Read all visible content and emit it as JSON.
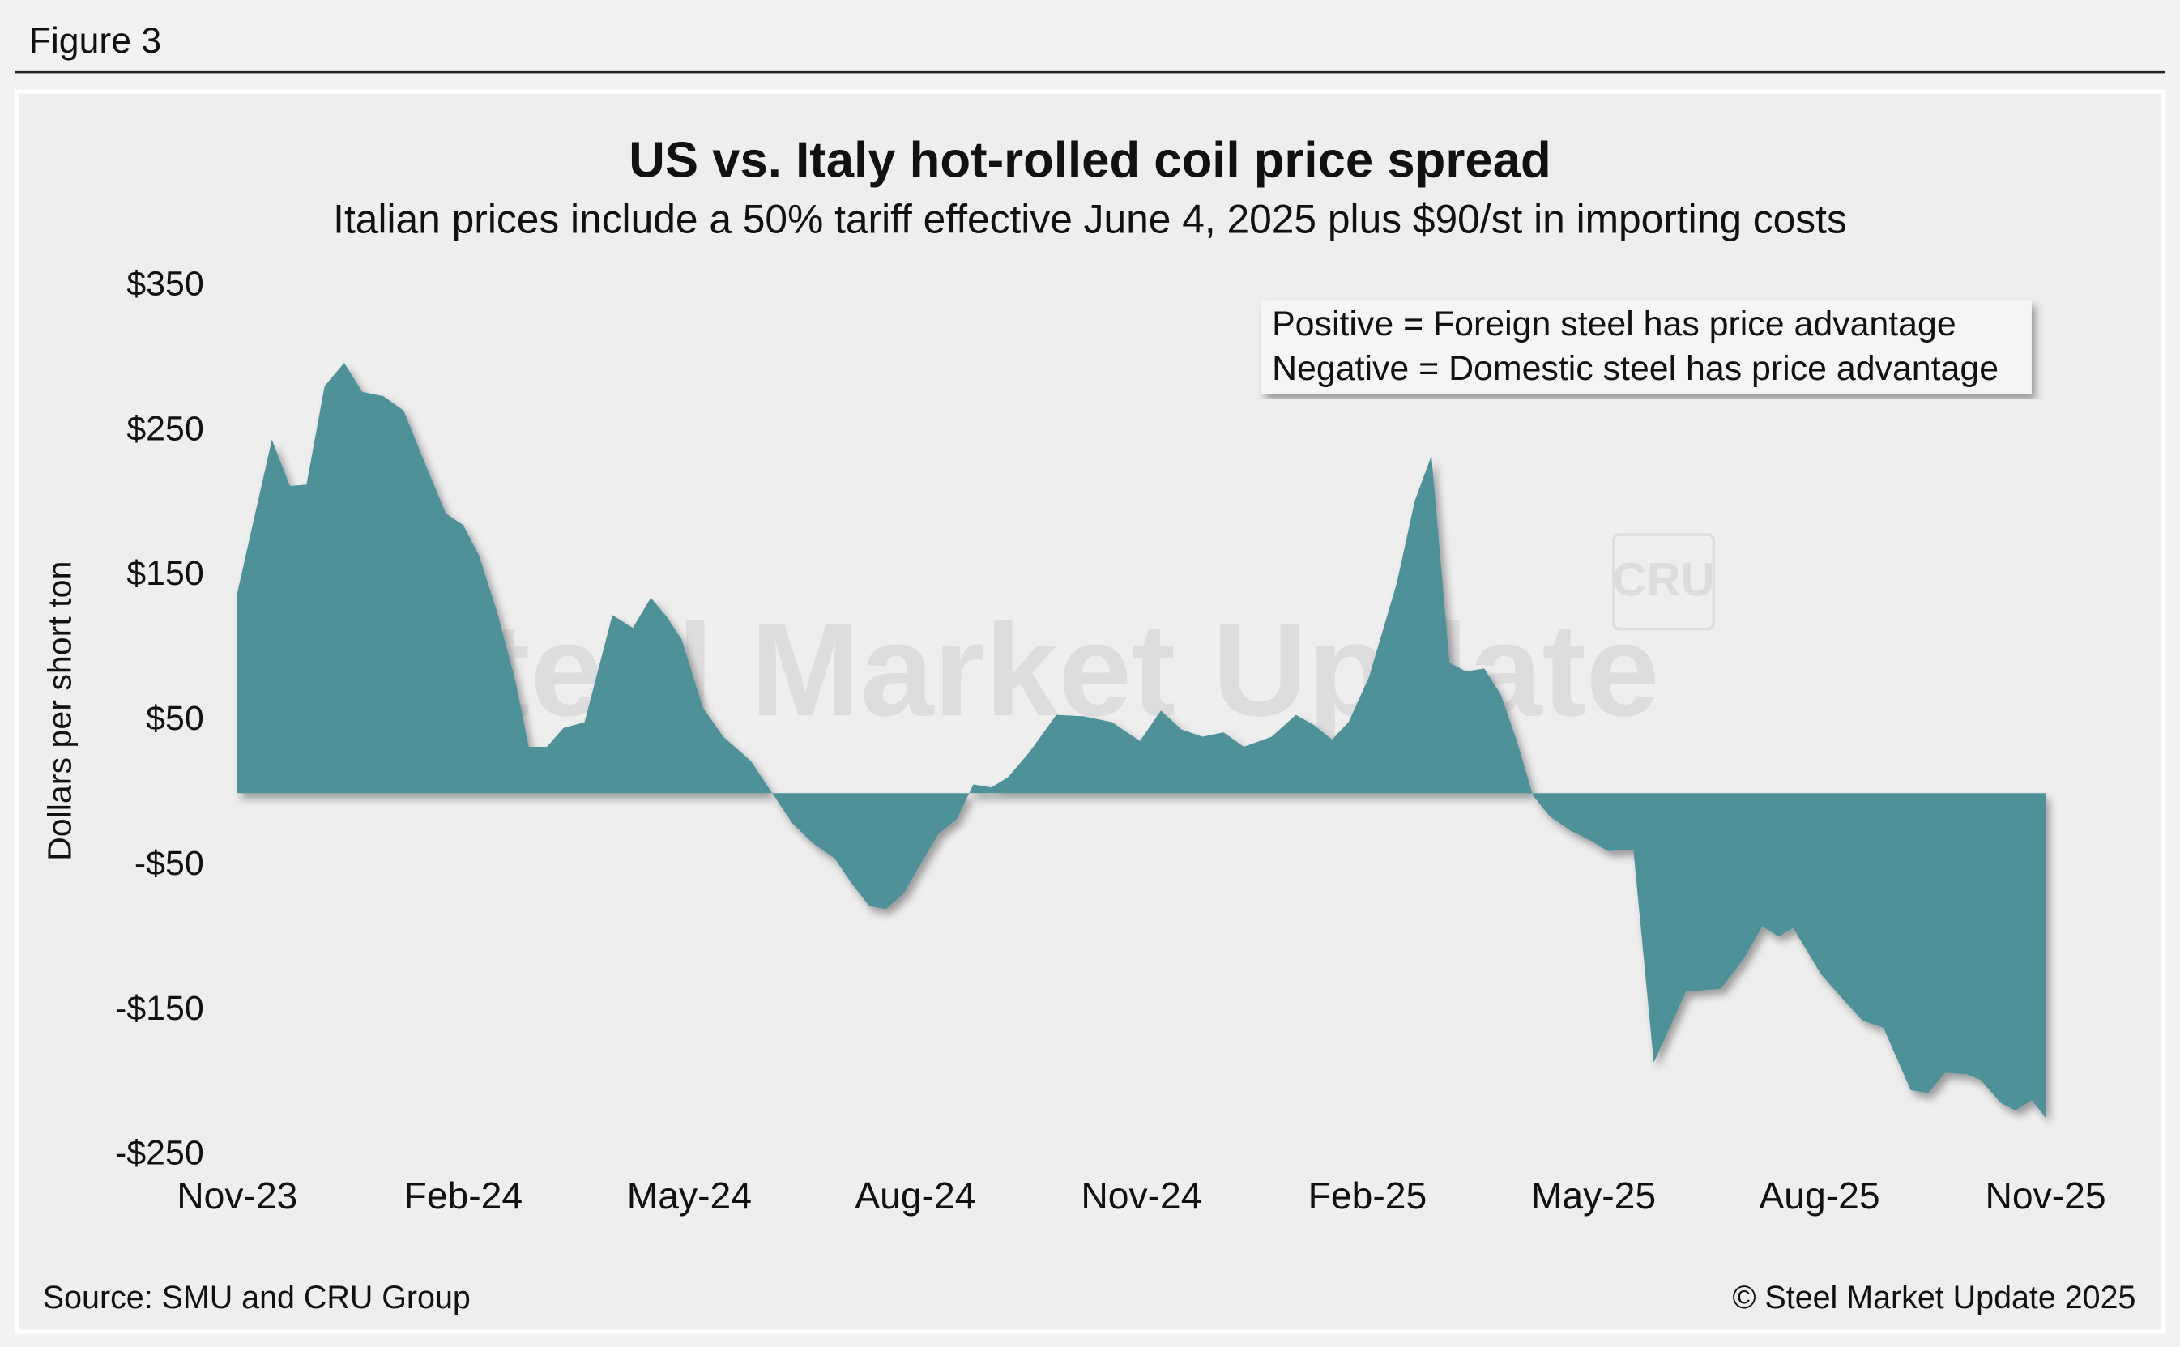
{
  "figure_label": "Figure 3",
  "chart_data": {
    "type": "area",
    "title": "US vs. Italy hot-rolled coil price spread",
    "subtitle": "Italian prices include a 50% tariff effective June 4, 2025 plus $90/st in importing costs",
    "y_label": "Dollars per short ton",
    "annotations": [
      "Positive = Foreign steel has price advantage",
      "Negative = Domestic steel has price advantage"
    ],
    "watermark": [
      "Steel Market Update",
      "CRU"
    ],
    "color": "#4f9199",
    "x": [
      0,
      0.46,
      0.7,
      0.92,
      1.16,
      1.42,
      1.66,
      1.94,
      2.21,
      2.49,
      2.77,
      3,
      3.21,
      3.45,
      3.69,
      3.87,
      4.11,
      4.33,
      4.61,
      4.98,
      5.25,
      5.49,
      5.71,
      5.9,
      6.18,
      6.45,
      6.82,
      7.1,
      7.37,
      7.65,
      7.93,
      8.15,
      8.39,
      8.61,
      8.85,
      9.07,
      9.31,
      9.55,
      9.77,
      10.01,
      10.23,
      10.51,
      10.87,
      11.24,
      11.61,
      11.98,
      12.26,
      12.53,
      12.81,
      13.09,
      13.36,
      13.73,
      14.05,
      14.29,
      14.53,
      14.75,
      15.02,
      15.39,
      15.63,
      15.85,
      16.09,
      16.31,
      16.55,
      16.77,
      16.99,
      17.2,
      17.42,
      17.7,
      17.97,
      18.19,
      18.53,
      18.8,
      19.23,
      19.69,
      20,
      20.24,
      20.46,
      20.65,
      21.02,
      21.29,
      21.57,
      21.85,
      22.21,
      22.44,
      22.67,
      22.95,
      23.14,
      23.41,
      23.6,
      23.82,
      24
    ],
    "values": [
      138,
      244,
      212,
      213,
      281,
      297,
      277,
      274,
      264,
      228,
      193,
      185,
      164,
      125,
      78,
      32,
      32,
      45,
      49,
      123,
      114,
      135,
      121,
      106,
      59,
      39,
      22,
      0,
      -21,
      -35,
      -45,
      -62,
      -78,
      -80,
      -69,
      -49,
      -28,
      -18,
      6,
      4,
      11,
      28,
      54,
      53,
      49,
      36,
      57,
      44,
      39,
      42,
      32,
      39,
      54,
      47,
      37,
      49,
      80,
      145,
      202,
      233,
      90,
      84,
      86,
      68,
      35,
      -2,
      -16,
      -26,
      -33,
      -40,
      -39,
      -186,
      -137,
      -135,
      -114,
      -92,
      -99,
      -93,
      -125,
      -141,
      -157,
      -162,
      -205,
      -207,
      -193,
      -194,
      -198,
      -214,
      -219,
      -212,
      -224
    ],
    "xlim": [
      0,
      24
    ],
    "xticks": [
      {
        "value": 0,
        "label": "Nov-23"
      },
      {
        "value": 3,
        "label": "Feb-24"
      },
      {
        "value": 6,
        "label": "May-24"
      },
      {
        "value": 9,
        "label": "Aug-24"
      },
      {
        "value": 12,
        "label": "Nov-24"
      },
      {
        "value": 15,
        "label": "Feb-25"
      },
      {
        "value": 18,
        "label": "May-25"
      },
      {
        "value": 21,
        "label": "Aug-25"
      },
      {
        "value": 24,
        "label": "Nov-25"
      }
    ],
    "ylim": [
      -250,
      350
    ],
    "yticks": [
      {
        "value": 350,
        "label": "$350"
      },
      {
        "value": 250,
        "label": "$250"
      },
      {
        "value": 150,
        "label": "$150"
      },
      {
        "value": 50,
        "label": "$50"
      },
      {
        "value": -50,
        "label": "-$50"
      },
      {
        "value": -150,
        "label": "-$150"
      },
      {
        "value": -250,
        "label": "-$250"
      }
    ]
  },
  "footer": {
    "source": "Source: SMU and CRU Group",
    "copyright": "© Steel Market Update 2025"
  }
}
